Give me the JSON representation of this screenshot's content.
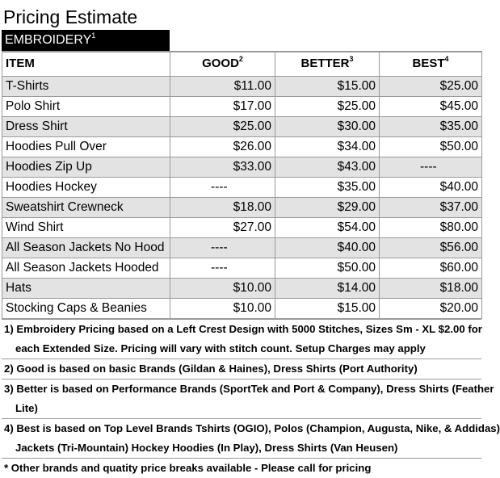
{
  "title": "Pricing Estimate",
  "section": {
    "label": "EMBROIDERY",
    "sup": "1"
  },
  "columns": [
    {
      "label": "ITEM",
      "sup": ""
    },
    {
      "label": "GOOD",
      "sup": "2"
    },
    {
      "label": "BETTER",
      "sup": "3"
    },
    {
      "label": "BEST",
      "sup": "4"
    }
  ],
  "rows": [
    {
      "item": "T-Shirts",
      "good": "$11.00",
      "better": "$15.00",
      "best": "$25.00"
    },
    {
      "item": "Polo Shirt",
      "good": "$17.00",
      "better": "$25.00",
      "best": "$45.00"
    },
    {
      "item": "Dress Shirt",
      "good": "$25.00",
      "better": "$30.00",
      "best": "$35.00"
    },
    {
      "item": "Hoodies Pull Over",
      "good": "$26.00",
      "better": "$34.00",
      "best": "$50.00"
    },
    {
      "item": "Hoodies Zip Up",
      "good": "$33.00",
      "better": "$43.00",
      "best": "----"
    },
    {
      "item": "Hoodies Hockey",
      "good": "----",
      "better": "$35.00",
      "best": "$40.00"
    },
    {
      "item": "Sweatshirt Crewneck",
      "good": "$18.00",
      "better": "$29.00",
      "best": "$37.00"
    },
    {
      "item": "Wind Shirt",
      "good": "$27.00",
      "better": "$54.00",
      "best": "$80.00"
    },
    {
      "item": "All Season Jackets No Hood",
      "good": "----",
      "better": "$40.00",
      "best": "$56.00"
    },
    {
      "item": "All Season Jackets Hooded",
      "good": "----",
      "better": "$50.00",
      "best": "$60.00"
    },
    {
      "item": "Hats",
      "good": "$10.00",
      "better": "$14.00",
      "best": "$18.00"
    },
    {
      "item": "Stocking Caps & Beanies",
      "good": "$10.00",
      "better": "$15.00",
      "best": "$20.00"
    }
  ],
  "notes": [
    {
      "lines": [
        "1) Embroidery Pricing based on a Left Crest Design with 5000 Stitches, Sizes Sm - XL $2.00 for",
        "each Extended Size.  Pricing will vary with stitch count.  Setup Charges may apply"
      ]
    },
    {
      "lines": [
        "2) Good is based on basic Brands (Gildan & Haines), Dress Shirts (Port Authority)"
      ]
    },
    {
      "lines": [
        "3) Better is based on Performance Brands (SportTek and Port & Company), Dress Shirts (Feather",
        "Lite)"
      ]
    },
    {
      "lines": [
        "4) Best is based on Top Level Brands Tshirts (OGIO), Polos (Champion, Augusta, Nike, & Addidas)",
        "Jackets (Tri-Mountain) Hockey Hoodies (In Play), Dress Shirts (Van Heusen)"
      ]
    },
    {
      "lines": [
        "*  Other brands and quatity price breaks available - Please call for pricing"
      ]
    }
  ]
}
